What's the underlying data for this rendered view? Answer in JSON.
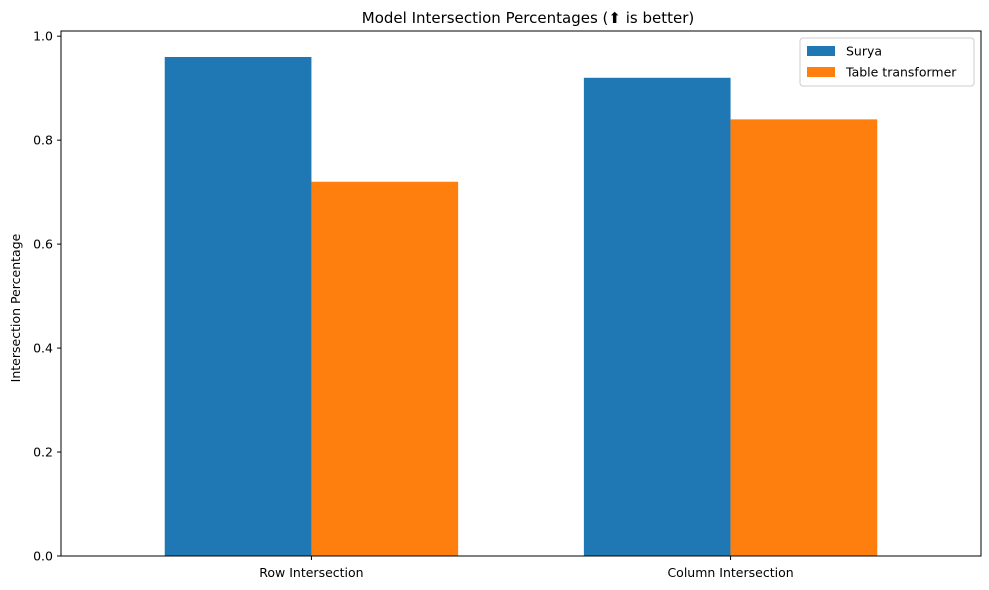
{
  "chart_data": {
    "type": "bar",
    "title": "Model Intersection Percentages (⬆ is better)",
    "xlabel": "",
    "ylabel": "Intersection Percentage",
    "categories": [
      "Row Intersection",
      "Column Intersection"
    ],
    "series": [
      {
        "name": "Surya",
        "values": [
          0.96,
          0.92
        ],
        "color": "#1f77b4"
      },
      {
        "name": "Table transformer",
        "values": [
          0.72,
          0.84
        ],
        "color": "#ff7f0e"
      }
    ],
    "ylim": [
      0,
      1.01
    ],
    "yticks": [
      0.0,
      0.2,
      0.4,
      0.6,
      0.8,
      1.0
    ],
    "ytick_labels": [
      "0.0",
      "0.2",
      "0.4",
      "0.6",
      "0.8",
      "1.0"
    ],
    "grid": false,
    "legend_position": "top-right"
  }
}
